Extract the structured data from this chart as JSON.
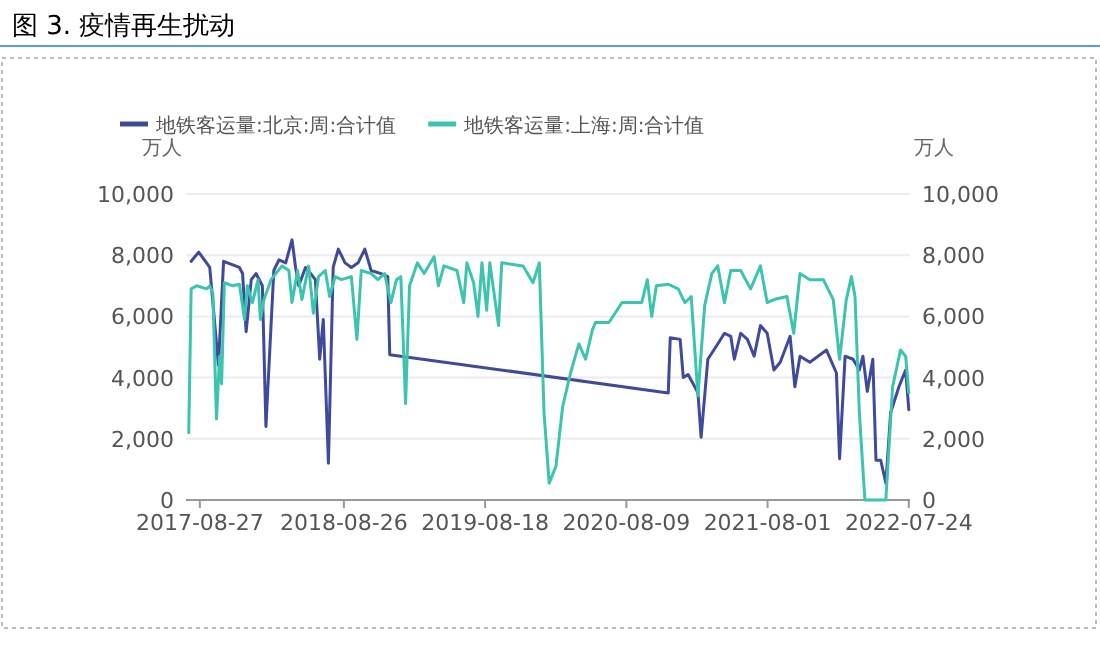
{
  "chart_data": {
    "type": "line",
    "title": "图 3. 疫情再生扰动",
    "ylabel": "万人",
    "y2label": "万人",
    "xlim": [
      "2017-07-23",
      "2022-07-27"
    ],
    "xticks": [
      "2017-08-27",
      "2018-08-26",
      "2019-08-18",
      "2020-08-09",
      "2021-08-01",
      "2022-07-24"
    ],
    "ylim": [
      0,
      10000
    ],
    "yticks": [
      {
        "value": 0,
        "label": "0"
      },
      {
        "value": 2000,
        "label": "2,000"
      },
      {
        "value": 4000,
        "label": "4,000"
      },
      {
        "value": 6000,
        "label": "6,000"
      },
      {
        "value": 8000,
        "label": "8,000"
      },
      {
        "value": 10000,
        "label": "10,000"
      }
    ],
    "y2lim": [
      0,
      10000
    ],
    "y2ticks": [
      {
        "value": 0,
        "label": "0"
      },
      {
        "value": 2000,
        "label": "2,000"
      },
      {
        "value": 4000,
        "label": "4,000"
      },
      {
        "value": 6000,
        "label": "6,000"
      },
      {
        "value": 8000,
        "label": "8,000"
      },
      {
        "value": 10000,
        "label": "10,000"
      }
    ],
    "grid": "y",
    "legend": "top",
    "marker": "none",
    "line_style": "solid",
    "series": [
      {
        "name": "地铁客运量:北京:周:合计值",
        "color": "#3f4a9c",
        "x": [
          "2017-08-05",
          "2017-08-24",
          "2017-09-13",
          "2017-09-21",
          "2017-10-13",
          "2017-10-26",
          "2017-12-05",
          "2017-12-13",
          "2017-12-22",
          "2018-01-04",
          "2018-01-16",
          "2018-02-01",
          "2018-02-10",
          "2018-03-02",
          "2018-03-15",
          "2018-04-01",
          "2018-04-17",
          "2018-04-26",
          "2018-05-04",
          "2018-05-21",
          "2018-06-03",
          "2018-06-15",
          "2018-06-26",
          "2018-07-05",
          "2018-07-18",
          "2018-07-30",
          "2018-08-12",
          "2018-08-29",
          "2018-09-14",
          "2018-10-01",
          "2018-10-18",
          "2018-11-03",
          "2018-11-28",
          "2018-12-15",
          "2018-12-20",
          "2020-11-23",
          "2020-11-28",
          "2020-12-23",
          "2020-12-31",
          "2021-01-12",
          "2021-01-29",
          "2021-02-06",
          "2021-02-14",
          "2021-03-03",
          "2021-03-28",
          "2021-04-14",
          "2021-04-30",
          "2021-05-09",
          "2021-05-25",
          "2021-06-11",
          "2021-06-28",
          "2021-07-14",
          "2021-07-31",
          "2021-08-17",
          "2021-09-02",
          "2021-09-27",
          "2021-10-09",
          "2021-10-22",
          "2021-11-16",
          "2021-12-28",
          "2022-01-22",
          "2022-01-30",
          "2022-02-13",
          "2022-03-05",
          "2022-03-21",
          "2022-03-30",
          "2022-04-10",
          "2022-04-24",
          "2022-05-02",
          "2022-05-14",
          "2022-05-27",
          "2022-06-08",
          "2022-06-29",
          "2022-07-16",
          "2022-07-24"
        ],
        "values": [
          7800,
          8100,
          7750,
          7600,
          4400,
          7800,
          7600,
          7400,
          5500,
          7200,
          7400,
          7000,
          2400,
          7500,
          7850,
          7750,
          8500,
          7600,
          7000,
          7600,
          7400,
          7200,
          4600,
          5900,
          1200,
          7600,
          8200,
          7750,
          7600,
          7750,
          8200,
          7500,
          7400,
          7300,
          4750,
          3500,
          5300,
          5250,
          4000,
          4100,
          3700,
          3500,
          2050,
          4600,
          5100,
          5450,
          5350,
          4600,
          5450,
          5250,
          4700,
          5700,
          5450,
          4250,
          4500,
          5350,
          3700,
          4700,
          4500,
          4900,
          4150,
          1350,
          4700,
          4600,
          4250,
          4700,
          3550,
          4600,
          1300,
          1300,
          550,
          2850,
          3700,
          4250,
          2950
        ]
      },
      {
        "name": "地铁客运量:上海:周:合计值",
        "color": "#3cc4ae",
        "x": [
          "2017-07-30",
          "2017-08-05",
          "2017-08-19",
          "2017-09-13",
          "2017-09-21",
          "2017-09-29",
          "2017-10-08",
          "2017-10-16",
          "2017-10-21",
          "2017-10-28",
          "2017-11-18",
          "2017-12-05",
          "2017-12-18",
          "2017-12-25",
          "2018-01-07",
          "2018-01-21",
          "2018-01-27",
          "2018-02-05",
          "2018-02-23",
          "2018-03-07",
          "2018-03-23",
          "2018-04-09",
          "2018-04-17",
          "2018-05-01",
          "2018-05-12",
          "2018-05-29",
          "2018-06-10",
          "2018-06-23",
          "2018-07-10",
          "2018-07-21",
          "2018-08-04",
          "2018-08-20",
          "2018-09-14",
          "2018-09-28",
          "2018-10-09",
          "2018-11-03",
          "2018-11-20",
          "2018-12-07",
          "2018-12-23",
          "2019-01-06",
          "2019-01-17",
          "2019-01-29",
          "2019-02-08",
          "2019-02-28",
          "2019-03-17",
          "2019-04-11",
          "2019-04-22",
          "2019-05-06",
          "2019-06-08",
          "2019-06-25",
          "2019-07-03",
          "2019-07-20",
          "2019-07-31",
          "2019-08-10",
          "2019-08-22",
          "2019-08-30",
          "2019-09-21",
          "2019-09-29",
          "2019-11-22",
          "2019-12-17",
          "2020-01-02",
          "2020-01-14",
          "2020-01-27",
          "2020-02-13",
          "2020-03-01",
          "2020-03-21",
          "2020-04-11",
          "2020-04-28",
          "2020-05-15",
          "2020-05-23",
          "2020-06-26",
          "2020-07-29",
          "2020-09-17",
          "2020-10-01",
          "2020-10-12",
          "2020-10-24",
          "2020-11-23",
          "2020-12-18",
          "2021-01-04",
          "2021-01-20",
          "2021-02-06",
          "2021-02-23",
          "2021-03-13",
          "2021-03-28",
          "2021-04-14",
          "2021-04-30",
          "2021-05-25",
          "2021-06-19",
          "2021-07-14",
          "2021-07-31",
          "2021-08-17",
          "2021-09-19",
          "2021-10-06",
          "2021-10-22",
          "2021-11-16",
          "2021-12-20",
          "2022-01-14",
          "2022-01-30",
          "2022-02-16",
          "2022-03-01",
          "2022-03-10",
          "2022-03-21",
          "2022-04-04",
          "2022-05-27",
          "2022-06-13",
          "2022-07-03",
          "2022-07-16",
          "2022-07-24"
        ],
        "values": [
          2200,
          6900,
          7000,
          6900,
          7000,
          6750,
          2650,
          4700,
          3800,
          7100,
          7000,
          7050,
          5900,
          7000,
          6450,
          7200,
          5900,
          6550,
          7200,
          7400,
          7650,
          7500,
          6450,
          7500,
          6550,
          7650,
          6100,
          7300,
          7500,
          6650,
          7300,
          7200,
          7300,
          5250,
          7500,
          7400,
          7200,
          7400,
          6450,
          7200,
          7300,
          3150,
          7000,
          7750,
          7400,
          7950,
          7000,
          7650,
          7500,
          6450,
          7750,
          7100,
          6000,
          7750,
          6200,
          7750,
          5700,
          7750,
          7650,
          7100,
          7750,
          2850,
          550,
          1100,
          3050,
          4150,
          5100,
          4600,
          5550,
          5800,
          5800,
          6450,
          6450,
          7200,
          6000,
          7000,
          7050,
          6900,
          6450,
          6650,
          3400,
          6350,
          7400,
          7650,
          6450,
          7500,
          7500,
          6900,
          7650,
          6450,
          6550,
          6650,
          5450,
          7400,
          7200,
          7200,
          6550,
          4600,
          6550,
          7300,
          6650,
          2850,
          0,
          0,
          3700,
          4900,
          4700,
          3500
        ]
      }
    ]
  }
}
